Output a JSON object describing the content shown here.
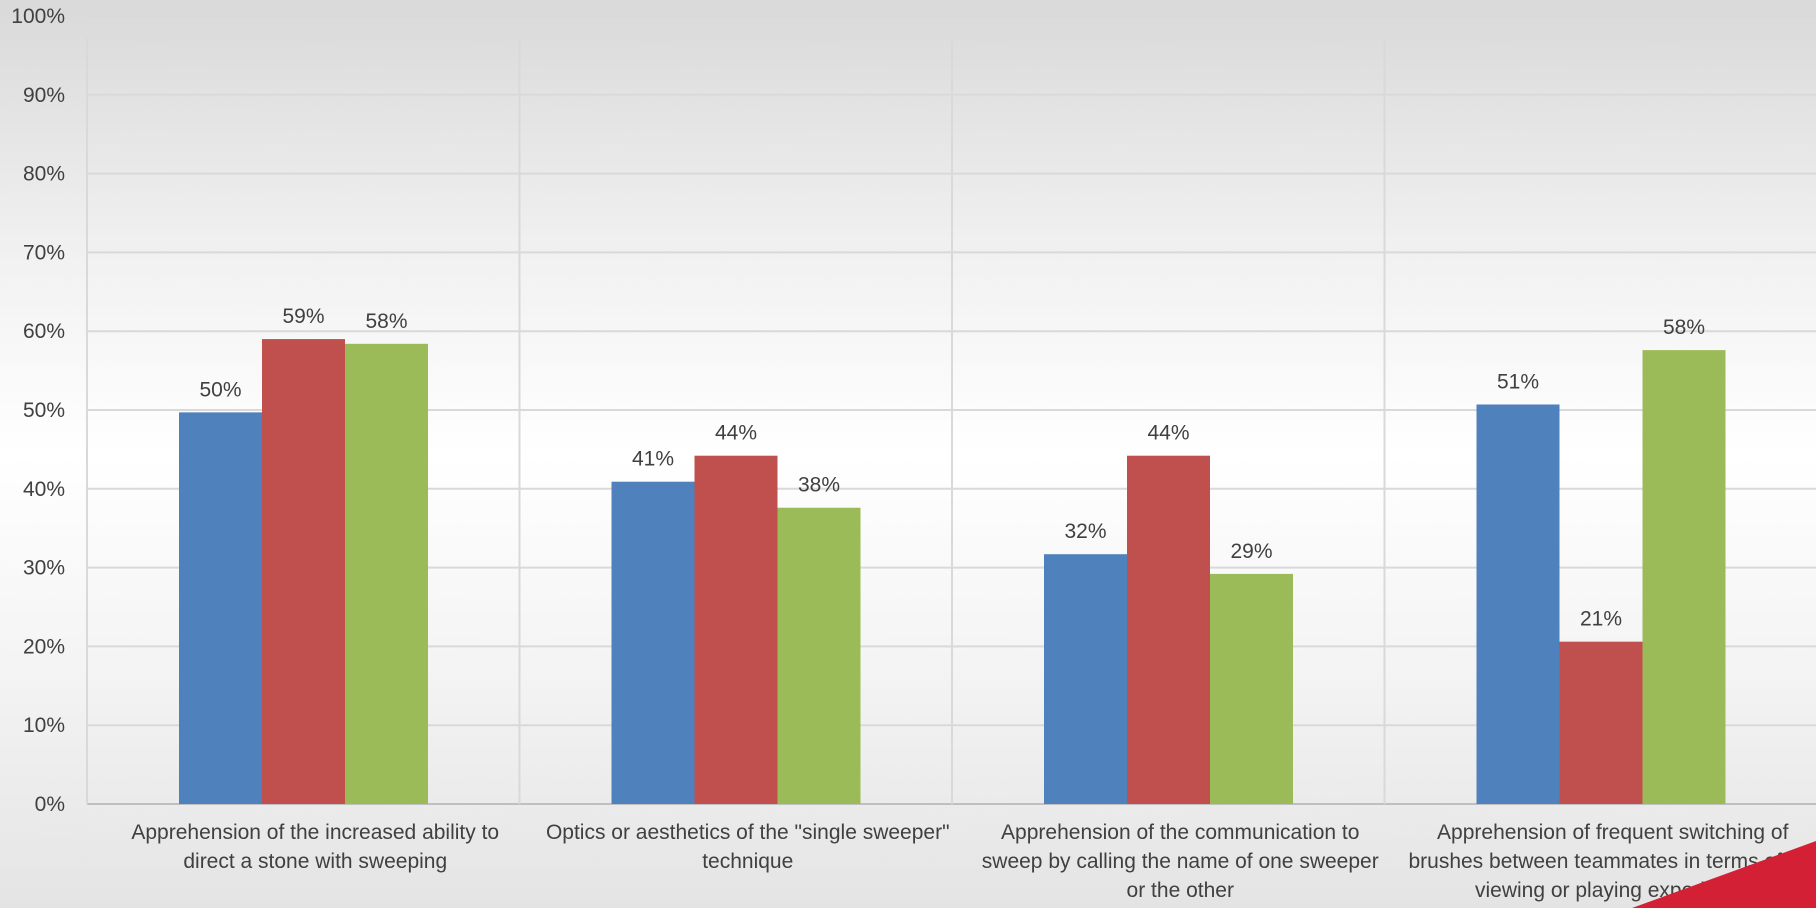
{
  "chart_data": {
    "type": "bar",
    "categories": [
      "Apprehension of the increased ability to direct a stone with sweeping",
      "Optics or aesthetics of the \"single sweeper\" technique",
      "Apprehension of the communication to sweep by calling the name of one sweeper or the other",
      "Apprehension of frequent switching of brushes between teammates in terms of the viewing or playing experience"
    ],
    "series": [
      {
        "values": [
          49.7,
          40.9,
          31.7,
          50.7
        ],
        "labels": [
          "50%",
          "41%",
          "32%",
          "51%"
        ],
        "color": "#4f81bd"
      },
      {
        "values": [
          59.0,
          44.2,
          44.2,
          20.6
        ],
        "labels": [
          "59%",
          "44%",
          "44%",
          "21%"
        ],
        "color": "#c0504d"
      },
      {
        "values": [
          58.4,
          37.6,
          29.2,
          57.6
        ],
        "labels": [
          "58%",
          "38%",
          "29%",
          "58%"
        ],
        "color": "#9bbb59"
      }
    ],
    "y_ticks": [
      "0%",
      "10%",
      "20%",
      "30%",
      "40%",
      "50%",
      "60%",
      "70%",
      "80%",
      "90%",
      "100%"
    ],
    "ylim": [
      0,
      100
    ],
    "grid": true,
    "legend": "none",
    "title": "",
    "xlabel": "",
    "ylabel": ""
  },
  "decor": {
    "corner_color": "#d42034"
  }
}
